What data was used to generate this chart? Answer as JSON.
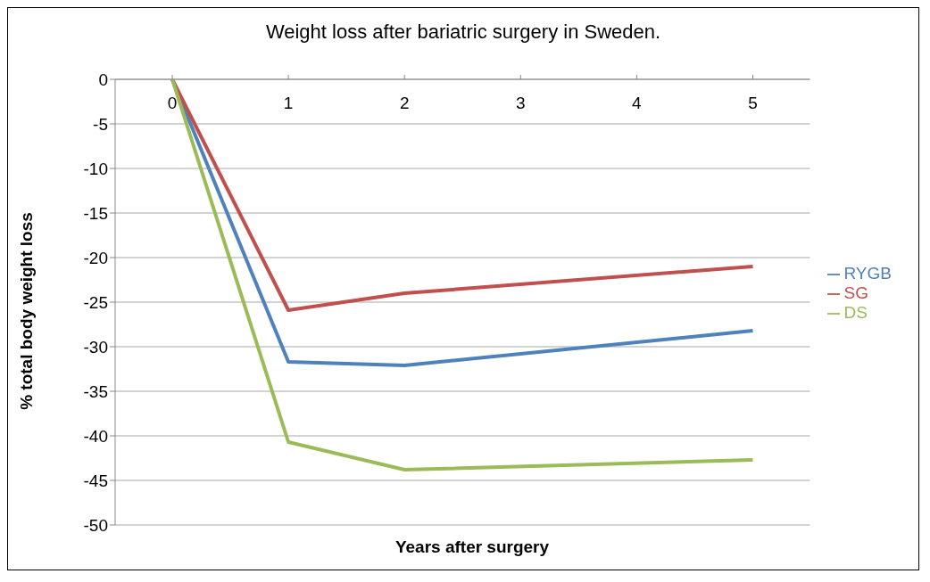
{
  "chart_data": {
    "type": "line",
    "title": "Weight loss after bariatric surgery in Sweden.",
    "xlabel": "Years after surgery",
    "ylabel": "% total body weight loss",
    "categories": [
      "0",
      "1",
      "2",
      "3",
      "4",
      "5"
    ],
    "series": [
      {
        "name": "RYGB",
        "color": "#4f81bd",
        "values": [
          0,
          -31.7,
          -32.1,
          null,
          null,
          -28.2
        ]
      },
      {
        "name": "SG",
        "color": "#c0504d",
        "values": [
          0,
          -25.9,
          -24.0,
          null,
          null,
          -21.0
        ]
      },
      {
        "name": "DS",
        "color": "#9bbb59",
        "values": [
          0,
          -40.7,
          -43.8,
          null,
          null,
          -42.7
        ]
      }
    ],
    "ylim": [
      -50,
      0
    ],
    "yticks": [
      0,
      -5,
      -10,
      -15,
      -20,
      -25,
      -30,
      -35,
      -40,
      -45,
      -50
    ],
    "grid": "y",
    "legend": "right",
    "marker": "none",
    "line_style": "solid"
  }
}
